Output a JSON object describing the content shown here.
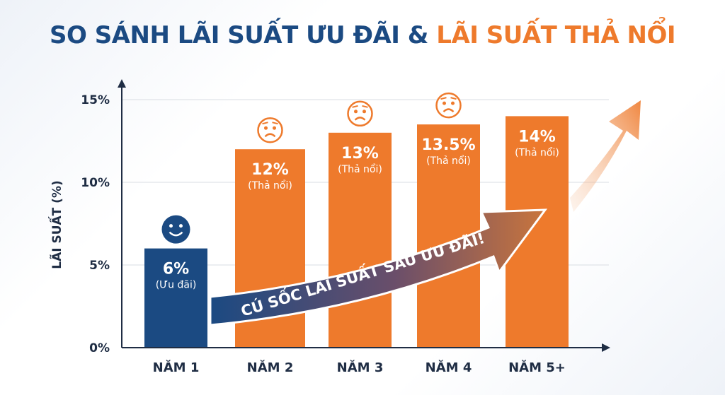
{
  "title_part1": "SO SÁNH LÃI SUẤT ƯU ĐÃI &",
  "title_part2": "LÃI SUẤT THẢ NỔI",
  "chart_data": {
    "type": "bar",
    "categories": [
      "NĂM 1",
      "NĂM 2",
      "NĂM 3",
      "NĂM 4",
      "NĂM 5+"
    ],
    "values": [
      6,
      12,
      13,
      13.5,
      14
    ],
    "data_labels": [
      "6%",
      "12%",
      "13%",
      "13.5%",
      "14%"
    ],
    "sub_labels": [
      "(Ưu đãi)",
      "(Thả nổi)",
      "(Thả nổi)",
      "(Thả nổi)",
      "(Thả nổi)"
    ],
    "icons": [
      "smiling-face",
      "worried-face",
      "worried-face",
      "worried-face",
      ""
    ],
    "ylabel": "LÃI SUẤT (%)",
    "xlabel": "",
    "ylim": [
      0,
      15.5
    ],
    "yticks": [
      0,
      5,
      10,
      15
    ],
    "ytick_labels": [
      "0%",
      "5%",
      "10%",
      "15%"
    ],
    "grid": true,
    "colors": {
      "preferential": "#1b4a82",
      "floating": "#ee7a2c"
    },
    "annotation": "CÚ SỐC LÃI SUẤT SAU ƯU ĐÃI!"
  }
}
